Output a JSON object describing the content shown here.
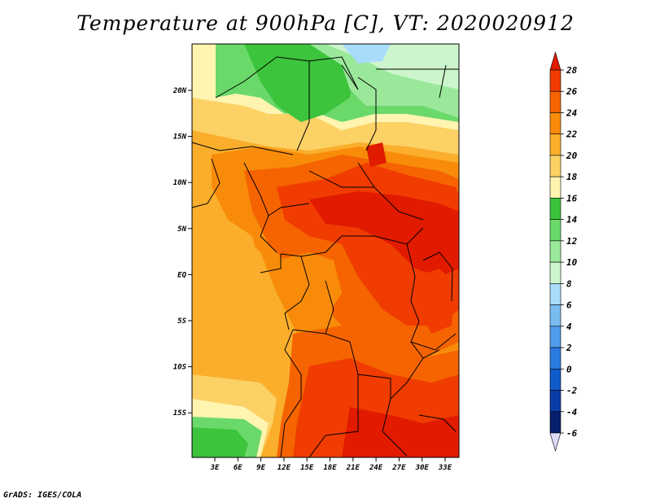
{
  "title": "Temperature at 900hPa [C], VT: 2020020912",
  "footer": "GrADS: IGES/COLA",
  "map": {
    "lon_labels": [
      "3E",
      "6E",
      "9E",
      "12E",
      "15E",
      "18E",
      "21E",
      "24E",
      "27E",
      "30E",
      "33E"
    ],
    "lat_labels": [
      "20N",
      "15N",
      "10N",
      "5N",
      "EQ",
      "5S",
      "10S",
      "15S"
    ]
  },
  "colorbar": {
    "labels": [
      "28",
      "26",
      "24",
      "22",
      "20",
      "18",
      "16",
      "14",
      "12",
      "10",
      "8",
      "6",
      "4",
      "2",
      "0",
      "-2",
      "-4",
      "-6"
    ],
    "colors": [
      "#e11a00",
      "#f03c00",
      "#f56400",
      "#f88c0a",
      "#faae2c",
      "#fcd166",
      "#fff4b0",
      "#3cc43c",
      "#6ad96a",
      "#9be89b",
      "#cdf5cd",
      "#a8dcfa",
      "#78bcf0",
      "#509cec",
      "#2c7ce0",
      "#105ccc",
      "#0a3ca8",
      "#06206e",
      "#0a1060"
    ]
  }
}
